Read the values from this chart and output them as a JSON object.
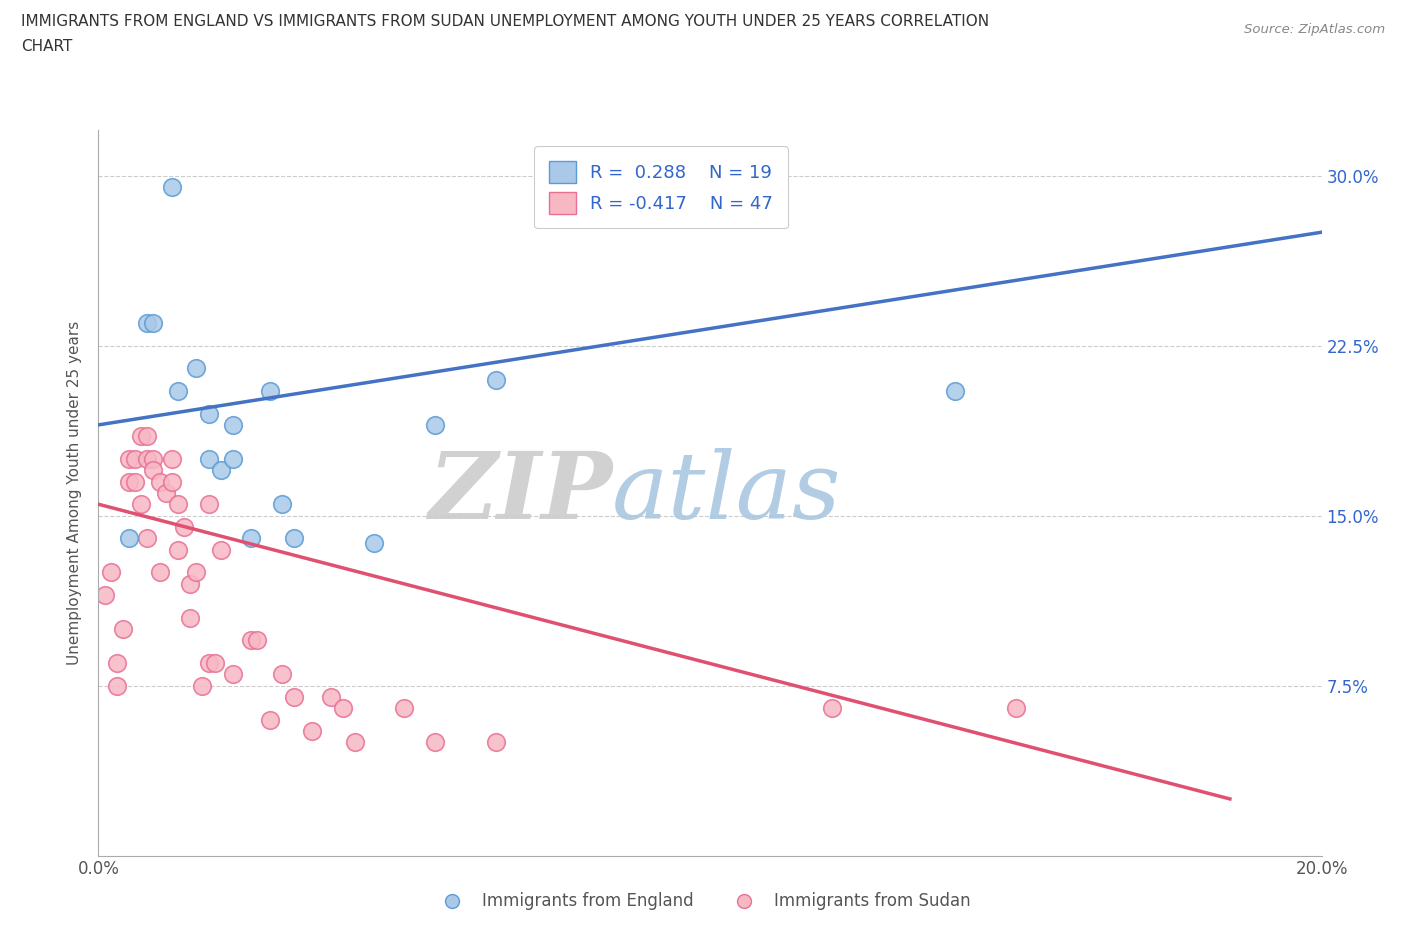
{
  "title_line1": "IMMIGRANTS FROM ENGLAND VS IMMIGRANTS FROM SUDAN UNEMPLOYMENT AMONG YOUTH UNDER 25 YEARS CORRELATION",
  "title_line2": "CHART",
  "source": "Source: ZipAtlas.com",
  "ylabel": "Unemployment Among Youth under 25 years",
  "xlim": [
    0.0,
    0.2
  ],
  "ylim": [
    0.0,
    0.32
  ],
  "xticks": [
    0.0,
    0.05,
    0.1,
    0.15,
    0.2
  ],
  "xticklabels": [
    "0.0%",
    "",
    "",
    "",
    "20.0%"
  ],
  "yticks": [
    0.0,
    0.075,
    0.15,
    0.225,
    0.3
  ],
  "yticklabels": [
    "",
    "7.5%",
    "15.0%",
    "22.5%",
    "30.0%"
  ],
  "england_color": "#aac9e8",
  "england_edge": "#5b9bd5",
  "sudan_color": "#f7b8c4",
  "sudan_edge": "#e87094",
  "england_R": 0.288,
  "england_N": 19,
  "sudan_R": -0.417,
  "sudan_N": 47,
  "legend_text_color": "#3366cc",
  "watermark_zip": "ZIP",
  "watermark_atlas": "atlas",
  "england_scatter_x": [
    0.012,
    0.008,
    0.009,
    0.013,
    0.016,
    0.018,
    0.018,
    0.02,
    0.022,
    0.022,
    0.025,
    0.028,
    0.03,
    0.032,
    0.045,
    0.055,
    0.14,
    0.065,
    0.005
  ],
  "england_scatter_y": [
    0.295,
    0.235,
    0.235,
    0.205,
    0.215,
    0.195,
    0.175,
    0.17,
    0.19,
    0.175,
    0.14,
    0.205,
    0.155,
    0.14,
    0.138,
    0.19,
    0.205,
    0.21,
    0.14
  ],
  "sudan_scatter_x": [
    0.001,
    0.002,
    0.003,
    0.003,
    0.004,
    0.005,
    0.005,
    0.006,
    0.006,
    0.007,
    0.007,
    0.008,
    0.008,
    0.008,
    0.009,
    0.009,
    0.01,
    0.01,
    0.011,
    0.012,
    0.012,
    0.013,
    0.013,
    0.014,
    0.015,
    0.015,
    0.016,
    0.017,
    0.018,
    0.018,
    0.019,
    0.02,
    0.022,
    0.025,
    0.026,
    0.028,
    0.03,
    0.032,
    0.035,
    0.038,
    0.04,
    0.042,
    0.05,
    0.055,
    0.065,
    0.12,
    0.15
  ],
  "sudan_scatter_y": [
    0.115,
    0.125,
    0.085,
    0.075,
    0.1,
    0.175,
    0.165,
    0.175,
    0.165,
    0.185,
    0.155,
    0.185,
    0.175,
    0.14,
    0.175,
    0.17,
    0.165,
    0.125,
    0.16,
    0.165,
    0.175,
    0.135,
    0.155,
    0.145,
    0.12,
    0.105,
    0.125,
    0.075,
    0.085,
    0.155,
    0.085,
    0.135,
    0.08,
    0.095,
    0.095,
    0.06,
    0.08,
    0.07,
    0.055,
    0.07,
    0.065,
    0.05,
    0.065,
    0.05,
    0.05,
    0.065,
    0.065
  ],
  "england_line_x": [
    0.0,
    0.2
  ],
  "england_line_y": [
    0.19,
    0.275
  ],
  "sudan_line_x": [
    0.0,
    0.185
  ],
  "sudan_line_y": [
    0.155,
    0.025
  ],
  "grid_color": "#cccccc",
  "bg_color": "#ffffff"
}
